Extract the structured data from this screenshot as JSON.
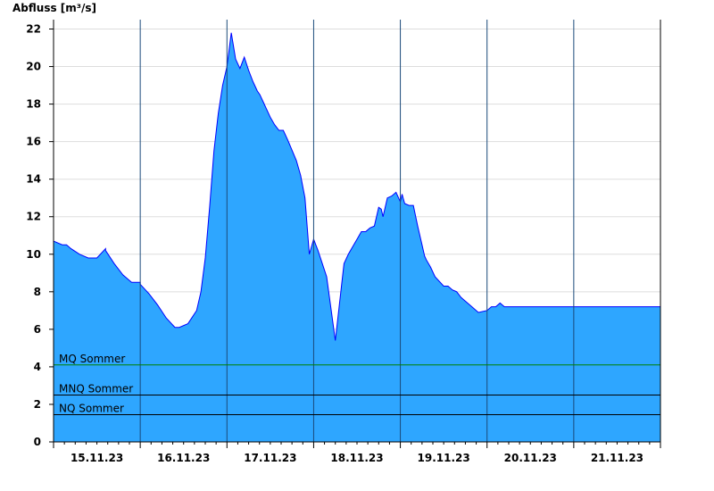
{
  "chart_data": {
    "type": "area",
    "ylabel": "Abfluss [m³/s]",
    "ylim": [
      0,
      22.5
    ],
    "yticks": [
      0,
      2,
      4,
      6,
      8,
      10,
      12,
      14,
      16,
      18,
      20,
      22
    ],
    "xlim": [
      0,
      7
    ],
    "grid": true,
    "colors": {
      "fill": "#2ea6ff",
      "line": "#0000ff",
      "mq_line": "#008000",
      "mnq_line": "#000000",
      "nq_line": "#000000"
    },
    "x_tick_labels": [
      {
        "x": 0.5,
        "label": "15.11.23"
      },
      {
        "x": 1.5,
        "label": "16.11.23"
      },
      {
        "x": 2.5,
        "label": "17.11.23"
      },
      {
        "x": 3.5,
        "label": "18.11.23"
      },
      {
        "x": 4.5,
        "label": "19.11.23"
      },
      {
        "x": 5.5,
        "label": "20.11.23"
      },
      {
        "x": 6.5,
        "label": "21.11.23"
      }
    ],
    "reference_lines": [
      {
        "name": "MQ Sommer",
        "value": 4.1,
        "color": "#008000"
      },
      {
        "name": "MNQ Sommer",
        "value": 2.5,
        "color": "#000000"
      },
      {
        "name": "NQ Sommer",
        "value": 1.45,
        "color": "#000000"
      }
    ],
    "series": [
      {
        "x": [
          0,
          0.1,
          0.15,
          0.2,
          0.3,
          0.4,
          0.5,
          0.6,
          0.6,
          0.7,
          0.8,
          0.9,
          1.0,
          1.0,
          1.1,
          1.2,
          1.3,
          1.4,
          1.45,
          1.55,
          1.65,
          1.7,
          1.75,
          1.8,
          1.85,
          1.9,
          1.95,
          2.0,
          2.05,
          2.1,
          2.15,
          2.2,
          2.25,
          2.3,
          2.35,
          2.38,
          2.42,
          2.45,
          2.5,
          2.55,
          2.6,
          2.65,
          2.7,
          2.8,
          2.85,
          2.9,
          2.95,
          3.0,
          3.05,
          3.15,
          3.25,
          3.35,
          3.4,
          3.5,
          3.55,
          3.6,
          3.65,
          3.7,
          3.75,
          3.78,
          3.8,
          3.85,
          3.9,
          3.95,
          4.0,
          4.02,
          4.05,
          4.1,
          4.15,
          4.2,
          4.25,
          4.28,
          4.3,
          4.35,
          4.4,
          4.5,
          4.55,
          4.6,
          4.65,
          4.7,
          4.75,
          4.8,
          4.9,
          5.0,
          5.05,
          5.1,
          5.15,
          5.2,
          5.25,
          5.3,
          5.35,
          5.4,
          5.45,
          5.5,
          5.6,
          5.7,
          5.8,
          5.9,
          5.95,
          6.0,
          6.05,
          6.1,
          6.15,
          6.2,
          6.3,
          6.4,
          6.5,
          6.6,
          6.7,
          6.8,
          6.9,
          6.95,
          7.0
        ],
        "values": [
          10.7,
          10.5,
          10.5,
          10.3,
          10.0,
          9.8,
          9.8,
          10.3,
          10.2,
          9.5,
          8.9,
          8.5,
          8.5,
          8.4,
          7.9,
          7.3,
          6.6,
          6.1,
          6.1,
          6.3,
          7.0,
          8.0,
          9.8,
          12.5,
          15.5,
          17.5,
          19.0,
          20.0,
          21.8,
          20.4,
          19.9,
          20.5,
          19.8,
          19.2,
          18.7,
          18.5,
          18.1,
          17.8,
          17.3,
          16.9,
          16.6,
          16.6,
          16.1,
          15.0,
          14.2,
          13.0,
          10.0,
          10.8,
          10.2,
          8.8,
          5.4,
          9.5,
          10.0,
          10.8,
          11.2,
          11.2,
          11.4,
          11.5,
          12.5,
          12.4,
          12.0,
          13.0,
          13.1,
          13.3,
          12.8,
          13.2,
          12.7,
          12.6,
          12.6,
          11.5,
          10.5,
          9.9,
          9.7,
          9.3,
          8.8,
          8.3,
          8.3,
          8.1,
          8.0,
          7.7,
          7.5,
          7.3,
          6.9,
          7.0,
          7.2,
          7.2,
          7.4,
          7.2,
          7.2,
          7.2,
          7.2,
          7.2,
          7.2,
          7.2,
          7.2,
          7.2,
          7.2,
          7.2,
          7.2,
          7.2,
          7.2,
          7.2,
          7.2,
          7.2,
          7.2,
          7.2,
          7.2,
          7.2,
          7.2,
          7.2,
          7.2,
          7.2,
          7.2
        ]
      }
    ]
  }
}
